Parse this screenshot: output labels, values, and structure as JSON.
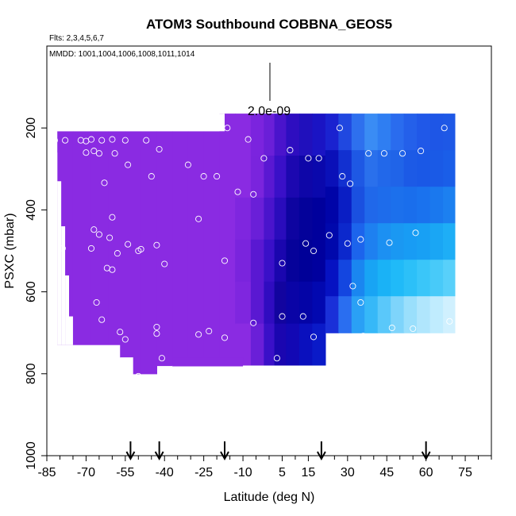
{
  "chart_data": {
    "type": "heatmap",
    "title": "ATOM3 Southbound COBBNA_GEOS5",
    "flights_label": "Flts: 2,3,4,5,6,7",
    "dates_label": "MMDD: 1001,1004,1006,1008,1011,1014",
    "xlabel": "Latitude (deg N)",
    "ylabel": "PSXC (mbar)",
    "xlim": [
      -85,
      85
    ],
    "ylim": [
      1000,
      0
    ],
    "x_tick_labels": [
      "-85",
      "-70",
      "-55",
      "-40",
      "-25",
      "-10",
      "5",
      "15",
      "30",
      "45",
      "60",
      "75"
    ],
    "x_tick_values": [
      -85,
      -70,
      -55,
      -40,
      -25,
      -10,
      5,
      15,
      30,
      45,
      60,
      75
    ],
    "x_minor_ticks": [
      -80,
      -75,
      -65,
      -60,
      -50,
      -45,
      -35,
      -30,
      -20,
      -15,
      -5,
      0,
      10,
      20,
      25,
      35,
      40,
      50,
      55,
      65,
      70,
      80,
      85
    ],
    "y_tick_labels": [
      "200",
      "400",
      "600",
      "800",
      "1000"
    ],
    "y_tick_values": [
      200,
      400,
      600,
      800,
      1000
    ],
    "scale_label": "2.0e-09",
    "colors": {
      "violet": "#8a2be2",
      "purple_mid": "#6a1fd8",
      "indigo": "#3a10c8",
      "deep_blue": "#0000a0",
      "blue": "#0a1ad0",
      "sky": "#1e6ff0",
      "cyan": "#17b4f5",
      "pale": "#b8e6ff",
      "marker": "#ffffff"
    },
    "arrow_latitudes": [
      -53,
      -42,
      -17,
      20,
      60
    ],
    "field_columns": [
      {
        "lat": -78,
        "bot": 730,
        "colors": [
          "#8a2be2"
        ]
      },
      {
        "lat": -72,
        "bot": 730,
        "colors": [
          "#8a2be2"
        ]
      },
      {
        "lat": -65,
        "bot": 730,
        "colors": [
          "#8a2be2"
        ]
      },
      {
        "lat": -58,
        "bot": 760,
        "colors": [
          "#8a2be2"
        ]
      },
      {
        "lat": -52,
        "bot": 800,
        "colors": [
          "#8a2be2"
        ]
      },
      {
        "lat": -46,
        "bot": 800,
        "colors": [
          "#8a2be2"
        ]
      },
      {
        "lat": -40,
        "bot": 780,
        "colors": [
          "#8a2be2"
        ]
      },
      {
        "lat": -34,
        "bot": 780,
        "colors": [
          "#8a2be2"
        ]
      },
      {
        "lat": -28,
        "bot": 780,
        "colors": [
          "#8a2be2"
        ]
      },
      {
        "lat": -22,
        "bot": 780,
        "colors": [
          "#8a2be2"
        ]
      },
      {
        "lat": -16,
        "bot": 780,
        "colors": [
          "#8a2be2"
        ]
      },
      {
        "lat": -10,
        "bot": 780,
        "colors": [
          "#8a2be2",
          "#8a2be2",
          "#7f26df",
          "#7a24dd",
          "#7f26df",
          "#8a2be2"
        ]
      },
      {
        "lat": -4,
        "bot": 780,
        "colors": [
          "#7b24de",
          "#7a24dd",
          "#6a1fd8",
          "#5a18d2",
          "#5a18d2",
          "#6a1fd8"
        ]
      },
      {
        "lat": 0,
        "bot": 780,
        "colors": [
          "#6a1fd8",
          "#5a18d2",
          "#4a14cc",
          "#3a10c8",
          "#300cc0",
          "#3a10c8"
        ]
      },
      {
        "lat": 4,
        "bot": 780,
        "colors": [
          "#4a14cc",
          "#3a10c8",
          "#2a0cbc",
          "#1a06ae",
          "#12049f",
          "#1a06b0"
        ]
      },
      {
        "lat": 9,
        "bot": 780,
        "colors": [
          "#2e0ec0",
          "#1c08b0",
          "#0e04a0",
          "#06029a",
          "#0a04a6",
          "#1208b4"
        ]
      },
      {
        "lat": 14,
        "bot": 780,
        "colors": [
          "#2010bc",
          "#0e06a8",
          "#04029a",
          "#000098",
          "#0404a6",
          "#0a10be"
        ]
      },
      {
        "lat": 19,
        "bot": 780,
        "colors": [
          "#1a14c4",
          "#0a08ac",
          "#00009c",
          "#00009e",
          "#0208b0",
          "#0a1ac8"
        ]
      },
      {
        "lat": 24,
        "bot": 700,
        "colors": [
          "#1a22d0",
          "#0a10b8",
          "#0004a8",
          "#0008ac",
          "#0612c2",
          "#1a30d8"
        ]
      },
      {
        "lat": 29,
        "bot": 700,
        "colors": [
          "#2048e0",
          "#1230d0",
          "#0a1ec4",
          "#0c28cc",
          "#1446e0",
          "#2a6ef0"
        ]
      },
      {
        "lat": 34,
        "bot": 700,
        "colors": [
          "#2e70ee",
          "#1e58e4",
          "#1a50e0",
          "#1c64ec",
          "#1a86f0",
          "#2aa0f5"
        ]
      },
      {
        "lat": 39,
        "bot": 700,
        "colors": [
          "#3a8cf4",
          "#2a70ec",
          "#2068ea",
          "#1e80f0",
          "#18a4f4",
          "#36b8f8"
        ]
      },
      {
        "lat": 44,
        "bot": 700,
        "colors": [
          "#2f7ef2",
          "#2268ea",
          "#1e6ceb",
          "#1c90f2",
          "#1ab2f6",
          "#5ac8fa"
        ]
      },
      {
        "lat": 49,
        "bot": 700,
        "colors": [
          "#2a6cee",
          "#2064e8",
          "#1c70ec",
          "#1a98f2",
          "#20baf8",
          "#7ed4fb"
        ]
      },
      {
        "lat": 54,
        "bot": 700,
        "colors": [
          "#2460ea",
          "#1c5ae6",
          "#1a6eec",
          "#189cf4",
          "#2cc0f8",
          "#9adffc"
        ]
      },
      {
        "lat": 59,
        "bot": 700,
        "colors": [
          "#2058e8",
          "#1a58e6",
          "#1a72ee",
          "#18a0f4",
          "#3ac6f9",
          "#b0e6fd"
        ]
      },
      {
        "lat": 64,
        "bot": 700,
        "colors": [
          "#1e56e6",
          "#1a5ae6",
          "#1a78ee",
          "#1aa6f4",
          "#48caf9",
          "#c0ecfe"
        ]
      },
      {
        "lat": 69,
        "bot": 700,
        "colors": [
          "#1e58e6",
          "#1a5ee8",
          "#1c80f0",
          "#1eaef6",
          "#58d0fa",
          "#d0f0fe"
        ]
      }
    ],
    "obs_points": [
      {
        "lat": -82,
        "p": 230
      },
      {
        "lat": -78,
        "p": 230
      },
      {
        "lat": -72,
        "p": 230
      },
      {
        "lat": -70,
        "p": 232
      },
      {
        "lat": -68,
        "p": 228
      },
      {
        "lat": -64,
        "p": 230
      },
      {
        "lat": -60,
        "p": 228
      },
      {
        "lat": -55,
        "p": 230
      },
      {
        "lat": -47,
        "p": 230
      },
      {
        "lat": -70,
        "p": 260
      },
      {
        "lat": -67,
        "p": 256
      },
      {
        "lat": -65,
        "p": 262
      },
      {
        "lat": -59,
        "p": 262
      },
      {
        "lat": -42,
        "p": 252
      },
      {
        "lat": -54,
        "p": 290
      },
      {
        "lat": -31,
        "p": 290
      },
      {
        "lat": -45,
        "p": 318
      },
      {
        "lat": -25,
        "p": 318
      },
      {
        "lat": -20,
        "p": 318
      },
      {
        "lat": -63,
        "p": 334
      },
      {
        "lat": -12,
        "p": 356
      },
      {
        "lat": -6,
        "p": 362
      },
      {
        "lat": -60,
        "p": 418
      },
      {
        "lat": -27,
        "p": 422
      },
      {
        "lat": -67,
        "p": 448
      },
      {
        "lat": -65,
        "p": 460
      },
      {
        "lat": -61,
        "p": 468
      },
      {
        "lat": -79,
        "p": 494
      },
      {
        "lat": -68,
        "p": 494
      },
      {
        "lat": -58,
        "p": 506
      },
      {
        "lat": -54,
        "p": 484
      },
      {
        "lat": -50,
        "p": 500
      },
      {
        "lat": -49,
        "p": 496
      },
      {
        "lat": -43,
        "p": 486
      },
      {
        "lat": -62,
        "p": 542
      },
      {
        "lat": -60,
        "p": 546
      },
      {
        "lat": -40,
        "p": 532
      },
      {
        "lat": -17,
        "p": 524
      },
      {
        "lat": 5,
        "p": 530
      },
      {
        "lat": -66,
        "p": 626
      },
      {
        "lat": -64,
        "p": 668
      },
      {
        "lat": -57,
        "p": 698
      },
      {
        "lat": -55,
        "p": 716
      },
      {
        "lat": -43,
        "p": 686
      },
      {
        "lat": -43,
        "p": 702
      },
      {
        "lat": -27,
        "p": 704
      },
      {
        "lat": -23,
        "p": 696
      },
      {
        "lat": -17,
        "p": 712
      },
      {
        "lat": -6,
        "p": 676
      },
      {
        "lat": 5,
        "p": 660
      },
      {
        "lat": 13,
        "p": 660
      },
      {
        "lat": 17,
        "p": 710
      },
      {
        "lat": -41,
        "p": 762
      },
      {
        "lat": 3,
        "p": 762
      },
      {
        "lat": -50,
        "p": 806
      },
      {
        "lat": -2,
        "p": 274
      },
      {
        "lat": 8,
        "p": 254
      },
      {
        "lat": 15,
        "p": 274
      },
      {
        "lat": 19,
        "p": 274
      },
      {
        "lat": 28,
        "p": 318
      },
      {
        "lat": 31,
        "p": 336
      },
      {
        "lat": 14,
        "p": 482
      },
      {
        "lat": 17,
        "p": 500
      },
      {
        "lat": 23,
        "p": 462
      },
      {
        "lat": 30,
        "p": 482
      },
      {
        "lat": 35,
        "p": 472
      },
      {
        "lat": 46,
        "p": 480
      },
      {
        "lat": 56,
        "p": 456
      },
      {
        "lat": 32,
        "p": 586
      },
      {
        "lat": 35,
        "p": 626
      },
      {
        "lat": 36,
        "p": 708
      },
      {
        "lat": 47,
        "p": 688
      },
      {
        "lat": 55,
        "p": 690
      },
      {
        "lat": 69,
        "p": 672
      },
      {
        "lat": 38,
        "p": 262
      },
      {
        "lat": 44,
        "p": 262
      },
      {
        "lat": 51,
        "p": 262
      },
      {
        "lat": 58,
        "p": 256
      },
      {
        "lat": 67,
        "p": 200
      },
      {
        "lat": 27,
        "p": 200
      },
      {
        "lat": -16,
        "p": 200
      },
      {
        "lat": -8,
        "p": 228
      }
    ]
  }
}
